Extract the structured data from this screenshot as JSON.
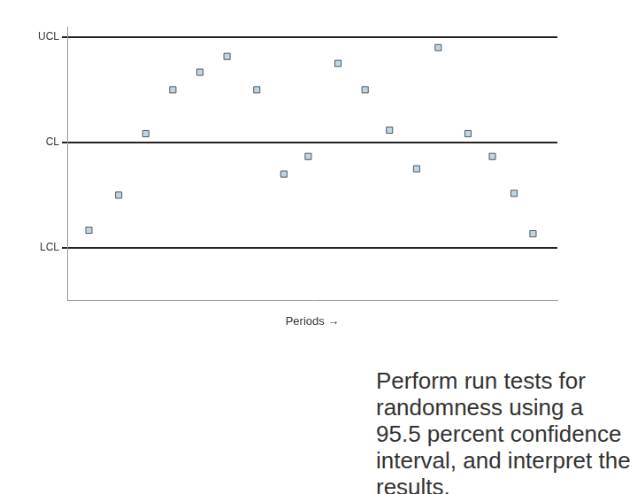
{
  "chart_data": {
    "type": "scatter",
    "x_label": "Periods →",
    "x": [
      1,
      2.1,
      3.1,
      4.1,
      5.1,
      6.1,
      7.2,
      8.2,
      9.1,
      10.2,
      11.2,
      12.1,
      13.1,
      13.9,
      15.0,
      15.9,
      16.7,
      17.4
    ],
    "values": [
      -2.5,
      -1.5,
      0.25,
      1.5,
      2.0,
      2.45,
      1.5,
      -0.9,
      -0.4,
      2.25,
      1.5,
      0.35,
      -0.75,
      2.7,
      0.25,
      -0.4,
      -1.45,
      -2.6
    ],
    "color": "#bcd6e8",
    "marker": "square",
    "xlim": [
      0.2,
      18.3
    ],
    "xticks": [],
    "ylim": [
      -4.5,
      3.3
    ],
    "yticks": [
      {
        "value": -3,
        "label": "LCL"
      },
      {
        "value": 0,
        "label": "CL"
      },
      {
        "value": 3,
        "label": "UCL"
      }
    ],
    "grid": true,
    "tick_labels": "y",
    "annotation": "Perform run tests for randomness using a 95.5 percent confidence interval, and interpret the results."
  }
}
